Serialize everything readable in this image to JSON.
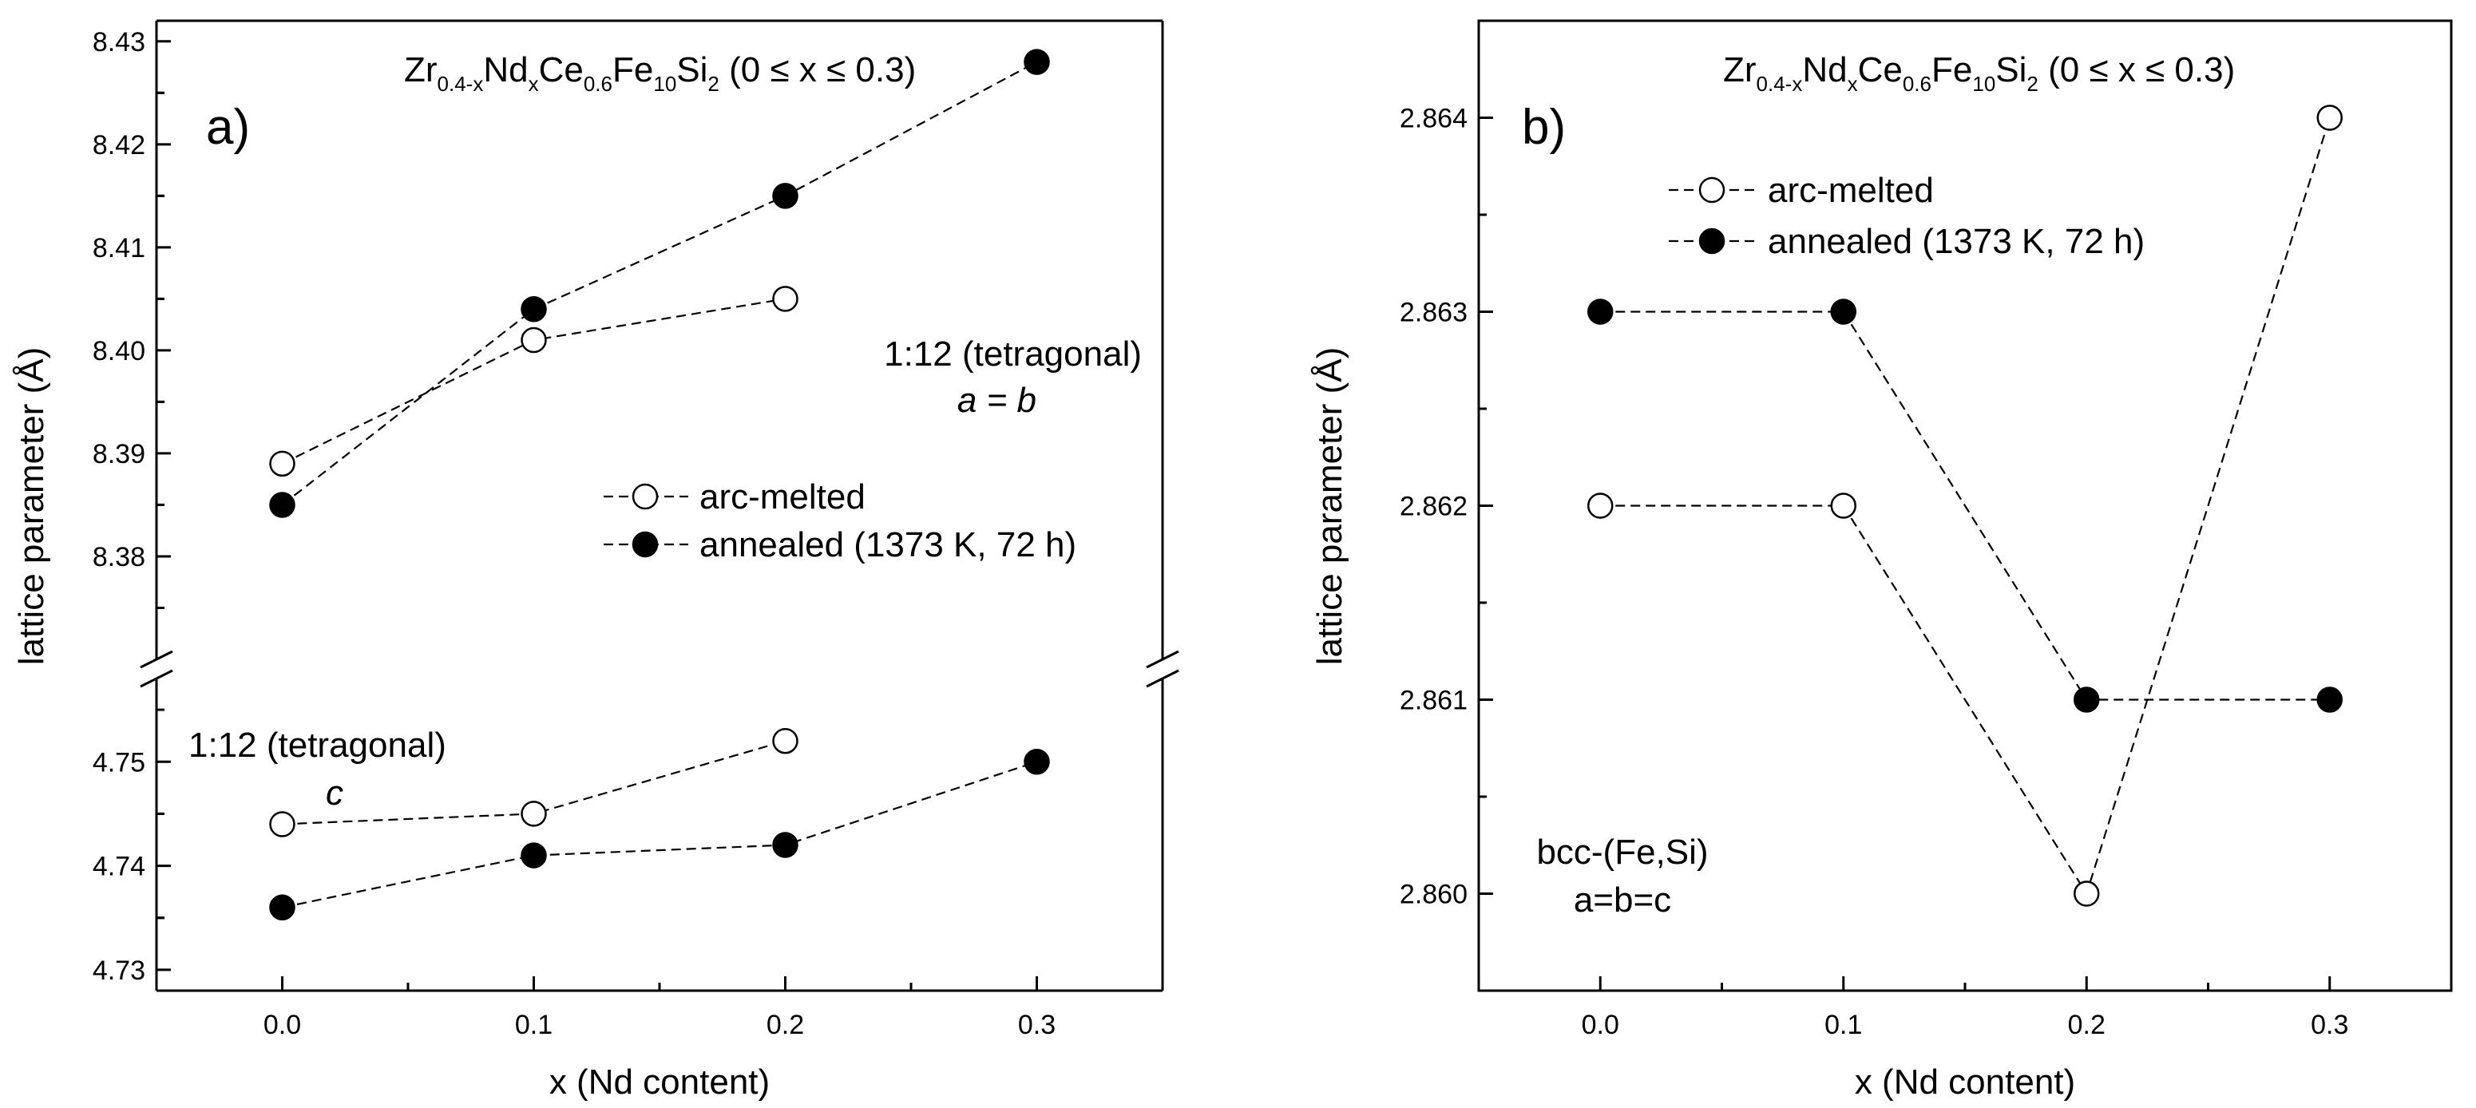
{
  "chart_data": [
    {
      "id": "panel-a",
      "type": "line",
      "panel_label": "a)",
      "title": {
        "parts": [
          {
            "t": "Zr",
            "sub": false
          },
          {
            "t": "0.4-x",
            "sub": true
          },
          {
            "t": "Nd",
            "sub": false
          },
          {
            "t": "x",
            "sub": true
          },
          {
            "t": "Ce",
            "sub": false
          },
          {
            "t": "0.6",
            "sub": true
          },
          {
            "t": "Fe",
            "sub": false
          },
          {
            "t": "10",
            "sub": true
          },
          {
            "t": "Si",
            "sub": false
          },
          {
            "t": "2",
            "sub": true
          },
          {
            "t": " (0 ≤ x ≤ 0.3)",
            "sub": false
          }
        ]
      },
      "xlabel": "x (Nd content)",
      "ylabel": "lattice parameter (Å)",
      "xlim": [
        -0.05,
        0.35
      ],
      "x_ticks": [
        0.0,
        0.1,
        0.2,
        0.3
      ],
      "x_tick_labels": [
        "0.0",
        "0.1",
        "0.2",
        "0.3"
      ],
      "broken_axis": true,
      "segments": [
        {
          "name": "upper",
          "ylim": [
            8.37,
            8.432
          ],
          "y_ticks": [
            8.38,
            8.39,
            8.4,
            8.41,
            8.42,
            8.43
          ],
          "y_tick_labels": [
            "8.38",
            "8.39",
            "8.40",
            "8.41",
            "8.42",
            "8.43"
          ],
          "annotation": [
            "1:12 (tetragonal)",
            "a = b"
          ],
          "series": [
            {
              "name": "arc-melted",
              "marker": "open-circle",
              "x": [
                0.0,
                0.1,
                0.2
              ],
              "y": [
                8.389,
                8.401,
                8.405
              ]
            },
            {
              "name": "annealed (1373 K, 72 h)",
              "marker": "filled-circle",
              "x": [
                0.0,
                0.1,
                0.2,
                0.3
              ],
              "y": [
                8.385,
                8.404,
                8.415,
                8.428
              ]
            }
          ]
        },
        {
          "name": "lower",
          "ylim": [
            4.728,
            4.758
          ],
          "y_ticks": [
            4.73,
            4.74,
            4.75
          ],
          "y_tick_labels": [
            "4.73",
            "4.74",
            "4.75"
          ],
          "annotation": [
            "1:12 (tetragonal)",
            "c"
          ],
          "series": [
            {
              "name": "arc-melted",
              "marker": "open-circle",
              "x": [
                0.0,
                0.1,
                0.2
              ],
              "y": [
                4.744,
                4.745,
                4.752
              ]
            },
            {
              "name": "annealed (1373 K, 72 h)",
              "marker": "filled-circle",
              "x": [
                0.0,
                0.1,
                0.2,
                0.3
              ],
              "y": [
                4.736,
                4.741,
                4.742,
                4.75
              ]
            }
          ]
        }
      ],
      "legend": {
        "position": "center-right",
        "entries": [
          {
            "label": "arc-melted",
            "marker": "open-circle"
          },
          {
            "label": "annealed (1373 K, 72 h)",
            "marker": "filled-circle"
          }
        ]
      }
    },
    {
      "id": "panel-b",
      "type": "line",
      "panel_label": "b)",
      "title": {
        "parts": [
          {
            "t": "Zr",
            "sub": false
          },
          {
            "t": "0.4-x",
            "sub": true
          },
          {
            "t": "Nd",
            "sub": false
          },
          {
            "t": "x",
            "sub": true
          },
          {
            "t": "Ce",
            "sub": false
          },
          {
            "t": "0.6",
            "sub": true
          },
          {
            "t": "Fe",
            "sub": false
          },
          {
            "t": "10",
            "sub": true
          },
          {
            "t": "Si",
            "sub": false
          },
          {
            "t": "2",
            "sub": true
          },
          {
            "t": " (0 ≤ x ≤ 0.3)",
            "sub": false
          }
        ]
      },
      "xlabel": "x (Nd content)",
      "ylabel": "lattice parameter (Å)",
      "xlim": [
        -0.05,
        0.35
      ],
      "x_ticks": [
        0.0,
        0.1,
        0.2,
        0.3
      ],
      "x_tick_labels": [
        "0.0",
        "0.1",
        "0.2",
        "0.3"
      ],
      "broken_axis": false,
      "segments": [
        {
          "name": "main",
          "ylim": [
            2.8595,
            2.8645
          ],
          "y_ticks": [
            2.86,
            2.861,
            2.862,
            2.863,
            2.864
          ],
          "y_tick_labels": [
            "2.860",
            "2.861",
            "2.862",
            "2.863",
            "2.864"
          ],
          "annotation": [
            "bcc-(Fe,Si)",
            "a=b=c"
          ],
          "series": [
            {
              "name": "arc-melted",
              "marker": "open-circle",
              "x": [
                0.0,
                0.1,
                0.2,
                0.3
              ],
              "y": [
                2.862,
                2.862,
                2.86,
                2.864
              ]
            },
            {
              "name": "annealed (1373 K, 72 h)",
              "marker": "filled-circle",
              "x": [
                0.0,
                0.1,
                0.2,
                0.3
              ],
              "y": [
                2.863,
                2.863,
                2.861,
                2.861
              ]
            }
          ]
        }
      ],
      "legend": {
        "position": "top-left",
        "entries": [
          {
            "label": "arc-melted",
            "marker": "open-circle"
          },
          {
            "label": "annealed (1373 K, 72 h)",
            "marker": "filled-circle"
          }
        ]
      }
    }
  ]
}
